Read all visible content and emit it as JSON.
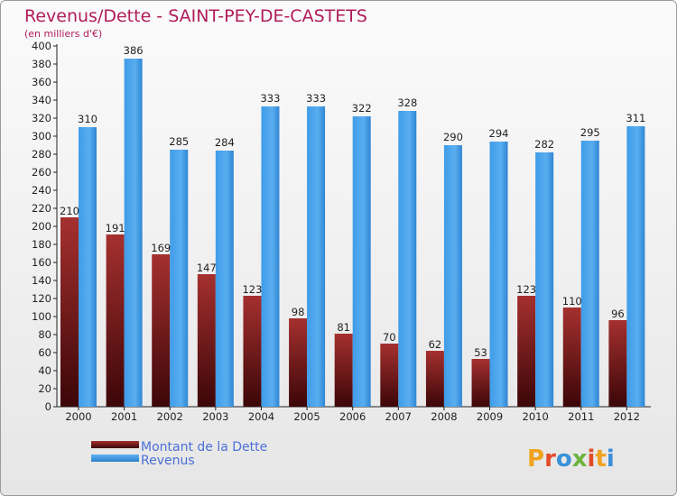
{
  "chart_data": {
    "type": "bar",
    "title": "Revenus/Dette - SAINT-PEY-DE-CASTETS",
    "subtitle": "(en milliers d'€)",
    "categories": [
      "2000",
      "2001",
      "2002",
      "2003",
      "2004",
      "2005",
      "2006",
      "2007",
      "2008",
      "2009",
      "2010",
      "2011",
      "2012"
    ],
    "series": [
      {
        "name": "Montant de la Dette",
        "values": [
          210,
          191,
          169,
          147,
          123,
          98,
          81,
          70,
          62,
          53,
          123,
          110,
          96
        ],
        "color": "#7a1a1a"
      },
      {
        "name": "Revenus",
        "values": [
          310,
          386,
          285,
          284,
          333,
          333,
          322,
          328,
          290,
          294,
          282,
          295,
          311
        ],
        "color": "#4aa3e8"
      }
    ],
    "ylim": [
      0,
      400
    ],
    "ytick_step": 20,
    "grid": false,
    "legend_placement": "bottom-left"
  },
  "logo": {
    "text": "Proxiti"
  }
}
